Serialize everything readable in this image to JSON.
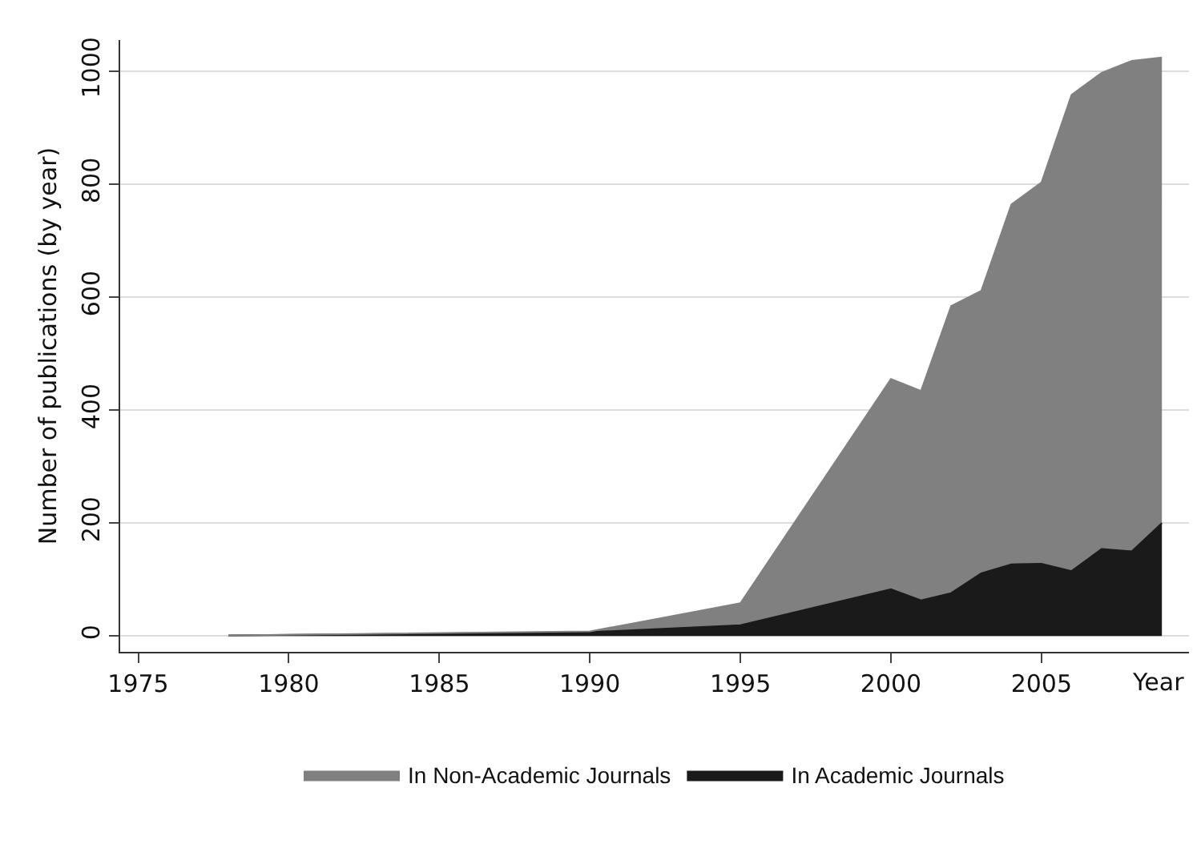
{
  "chart_data": {
    "type": "area",
    "stacked": true,
    "xlabel": "Year",
    "ylabel": "Number of publications (by year)",
    "x": [
      1978,
      1990,
      1995,
      2000,
      2001,
      2002,
      2003,
      2004,
      2005,
      2006,
      2007,
      2008,
      2009
    ],
    "series": [
      {
        "name": "In Academic Journals",
        "color": "#1a1a1a",
        "values": [
          1,
          7,
          19,
          83,
          63,
          76,
          111,
          127,
          128,
          115,
          154,
          150,
          200
        ]
      },
      {
        "name": "In Non-Academic Journals",
        "color": "#808080",
        "values": [
          0,
          1,
          39,
          372,
          371,
          508,
          500,
          637,
          675,
          843,
          843,
          868,
          824
        ]
      }
    ],
    "xlim": [
      1974.4,
      2009.9
    ],
    "xticks": [
      1975,
      1980,
      1985,
      1990,
      1995,
      2000,
      2005
    ],
    "ylim": [
      -28,
      1055
    ],
    "yticks": [
      0,
      200,
      400,
      600,
      800,
      1000
    ],
    "grid": "y",
    "legend": "bottom"
  }
}
